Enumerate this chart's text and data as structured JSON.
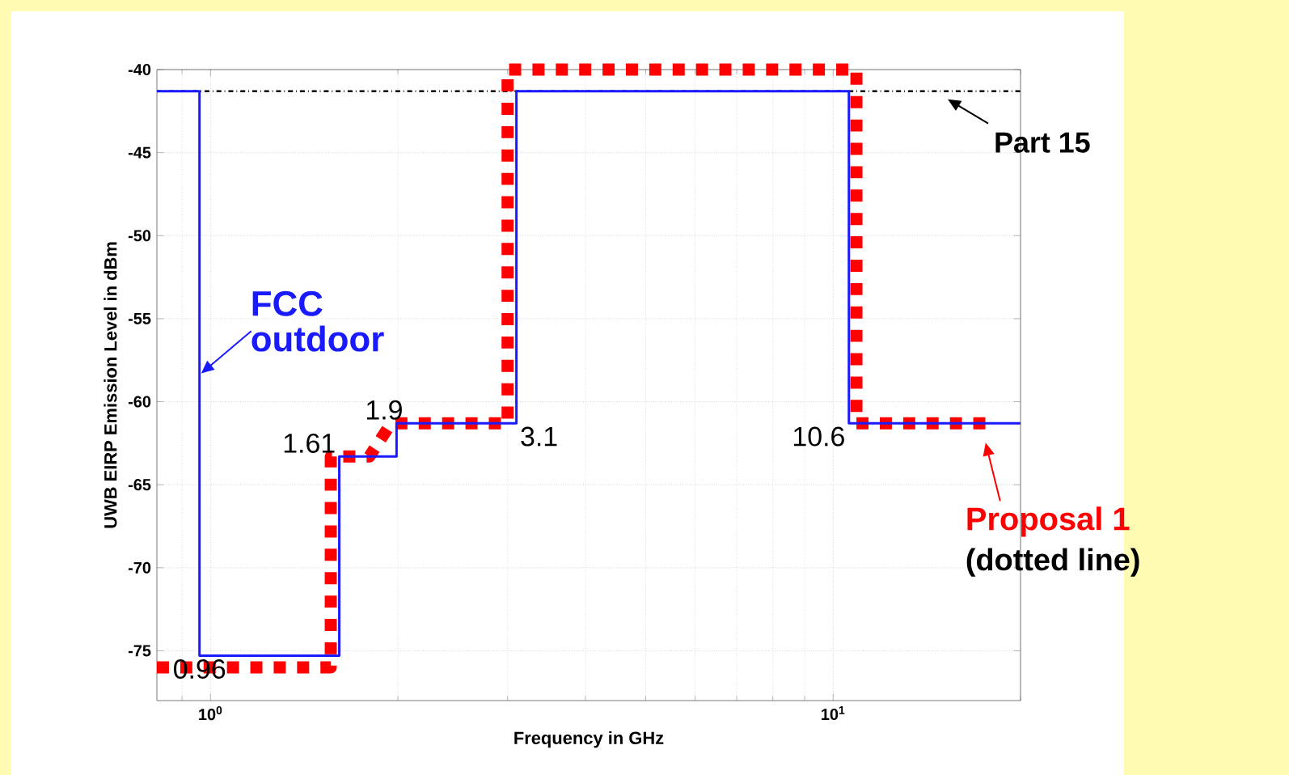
{
  "chart_data": {
    "type": "line",
    "xlabel": "Frequency in GHz",
    "ylabel": "UWB EIRP Emission Level in dBm",
    "log": "x",
    "grid": true,
    "legend": "right",
    "xlim": [
      0.82,
      20
    ],
    "ylim": [
      -78,
      -40
    ],
    "xticks": [
      {
        "value": 1,
        "label": "10$^{0}$"
      },
      {
        "value": 10,
        "label": "10$^{1}$"
      }
    ],
    "yticks": [
      -75,
      -70,
      -65,
      -60,
      -55,
      -50,
      -45,
      -40
    ],
    "series": [
      {
        "name": "FCC outdoor",
        "color": "#1a1aff",
        "line_style": "solid",
        "x": [
          0.82,
          0.96,
          0.96,
          1.61,
          1.61,
          1.99,
          1.99,
          3.1,
          3.1,
          10.6,
          10.6,
          20
        ],
        "values": [
          -41.3,
          -41.3,
          -75.3,
          -75.3,
          -63.3,
          -63.3,
          -61.3,
          -61.3,
          -41.3,
          -41.3,
          -61.3,
          -61.3
        ]
      },
      {
        "name": "Proposal 1",
        "color": "#ff0000",
        "line_style": "dotted",
        "x": [
          0.82,
          1.56,
          1.56,
          1.8,
          1.95,
          3.0,
          3.0,
          10.9,
          10.9,
          18
        ],
        "values": [
          -76,
          -76,
          -63.3,
          -63.3,
          -61.3,
          -61.3,
          -40,
          -40,
          -61.3,
          -61.3
        ]
      }
    ],
    "ref_lines": [
      {
        "axis": "y",
        "value": -41.3,
        "label": "Part 15",
        "color": "#000000",
        "line_style": "dashdot"
      }
    ],
    "annotations": [
      {
        "text": "0.96",
        "x": 0.96,
        "y": -75.3
      },
      {
        "text": "1.61",
        "x": 1.61,
        "y": -63.3
      },
      {
        "text": "1.9",
        "x": 1.9,
        "y": -61.3
      },
      {
        "text": "3.1",
        "x": 3.1,
        "y": -61.3
      },
      {
        "text": "10.6",
        "x": 10.6,
        "y": -61.3
      },
      "(dotted line)"
    ]
  }
}
